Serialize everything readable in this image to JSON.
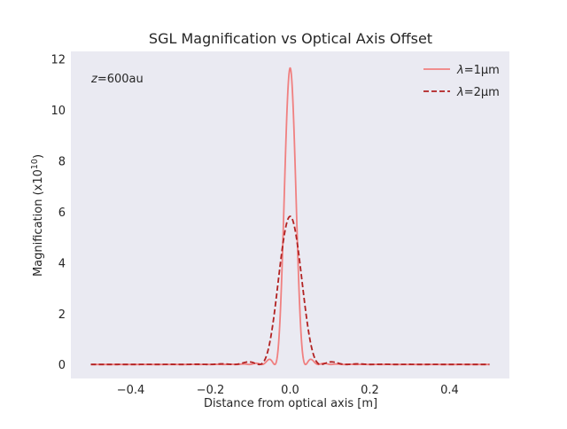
{
  "chart_data": {
    "type": "line",
    "title": "SGL Magnification vs Optical Axis Offset",
    "xlabel": "Distance from optical axis [m]",
    "ylabel_main": "Magnification (x10",
    "ylabel_exp": "10",
    "ylabel_close": ")",
    "xlim": [
      -0.55,
      0.55
    ],
    "ylim": [
      -0.55,
      12.3
    ],
    "xticks": [
      -0.4,
      -0.2,
      0.0,
      0.2,
      0.4
    ],
    "xtick_labels": [
      "−0.4",
      "−0.2",
      "0.0",
      "0.2",
      "0.4"
    ],
    "yticks": [
      0,
      2,
      4,
      6,
      8,
      10,
      12
    ],
    "ytick_labels": [
      "0",
      "2",
      "4",
      "6",
      "8",
      "10",
      "12"
    ],
    "grid": false,
    "legend_position": "top-right",
    "annotation": {
      "italic": "z",
      "rest": "=600au"
    },
    "series": [
      {
        "name_italic": "λ",
        "name_rest": "=1μm",
        "color": "#f08080",
        "style": "solid",
        "peak": 11.65,
        "first_zero": 0.0386,
        "x_range": [
          -0.5,
          0.5
        ]
      },
      {
        "name_italic": "λ",
        "name_rest": "=2μm",
        "color": "#b22222",
        "style": "dashed",
        "peak": 5.82,
        "first_zero": 0.0772,
        "x_range": [
          -0.5,
          0.5
        ]
      }
    ]
  }
}
